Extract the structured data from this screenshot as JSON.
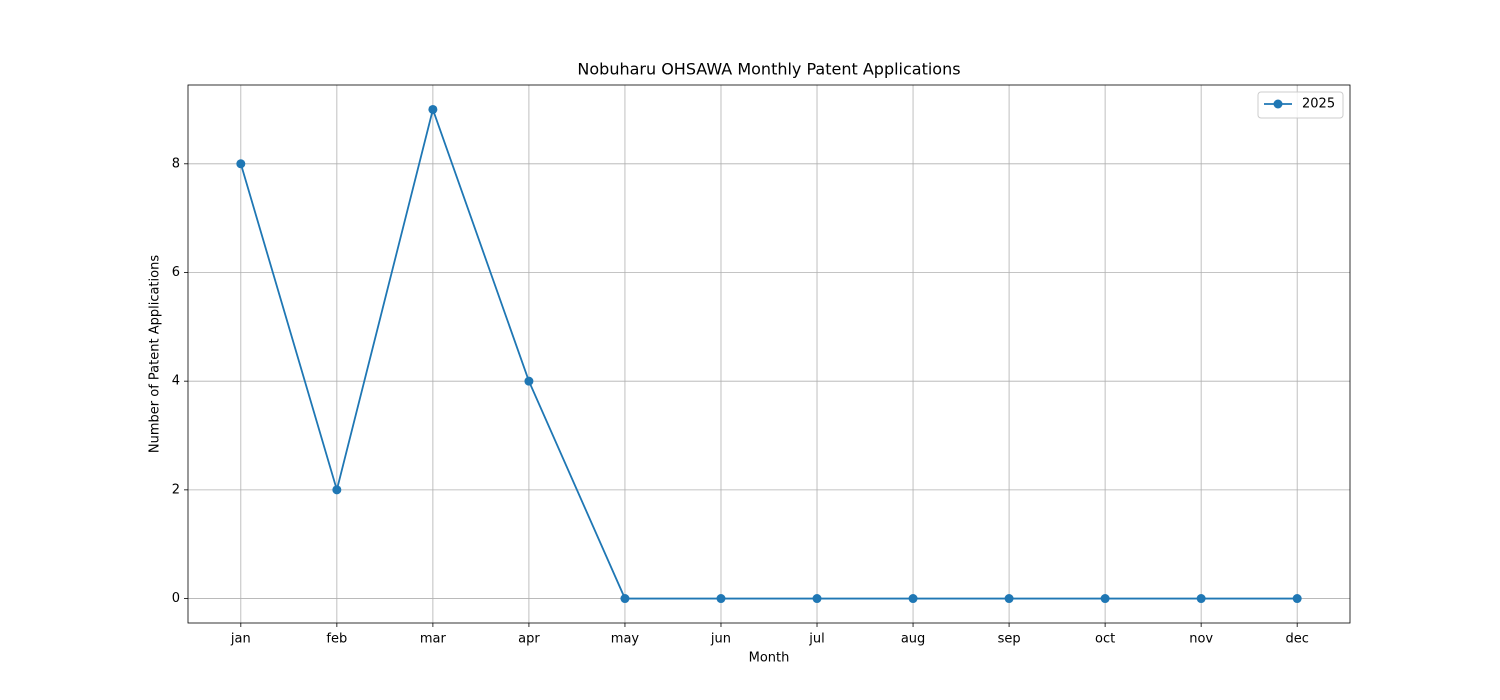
{
  "chart_data": {
    "type": "line",
    "title": "Nobuharu OHSAWA Monthly Patent Applications",
    "x_label": "Month",
    "y_label": "Number of Patent Applications",
    "categories": [
      "jan",
      "feb",
      "mar",
      "apr",
      "may",
      "jun",
      "jul",
      "aug",
      "sep",
      "oct",
      "nov",
      "dec"
    ],
    "series": [
      {
        "name": "2025",
        "color": "#1f77b4",
        "values": [
          8,
          2,
          9,
          4,
          0,
          0,
          0,
          0,
          0,
          0,
          0,
          0
        ]
      }
    ],
    "ylim": [
      -0.45,
      9.45
    ],
    "yticks": [
      0,
      2,
      4,
      6,
      8
    ],
    "grid": true,
    "legend": "upper right"
  }
}
